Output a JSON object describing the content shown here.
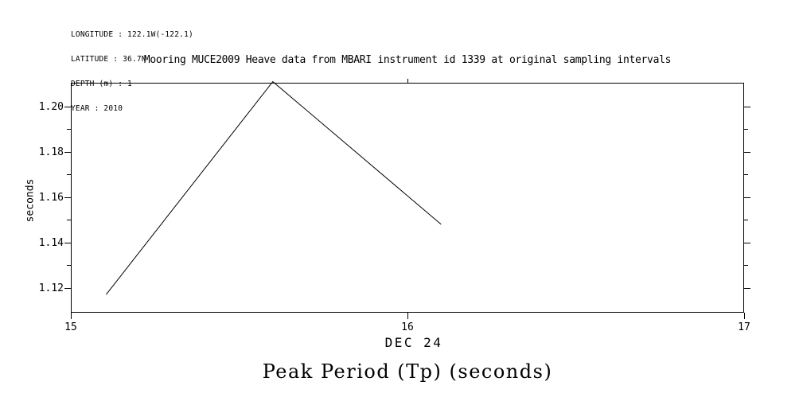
{
  "page": {
    "background": "#ffffff",
    "foreground": "#000000"
  },
  "header_info": {
    "lines": [
      "LONGITUDE : 122.1W(-122.1)",
      "LATITUDE : 36.7N",
      "DEPTH (m) : 1",
      "YEAR : 2010"
    ]
  },
  "chart_data": {
    "type": "line",
    "title": "Mooring MUCE2009 Heave data from MBARI instrument id 1339 at original sampling intervals",
    "ylabel": "seconds",
    "x_date_label": "DEC 24",
    "footer_title": "Peak Period (Tp) (seconds)",
    "series": [
      {
        "name": "peak-period-tp",
        "x": [
          15.105,
          15.6,
          16.1
        ],
        "y": [
          1.117,
          1.211,
          1.148
        ],
        "color": "#000000"
      }
    ],
    "xlim": [
      15,
      17
    ],
    "ylim": [
      1.109,
      1.2105
    ],
    "x_major_ticks": [
      15,
      16,
      17
    ],
    "x_major_tick_labels": [
      "15",
      "16",
      "17"
    ],
    "x_top_ticks": [
      16
    ],
    "y_major_ticks": [
      1.12,
      1.14,
      1.16,
      1.18,
      1.2
    ],
    "y_major_tick_labels": [
      "1.12",
      "1.14",
      "1.16",
      "1.18",
      "1.20"
    ],
    "y_minor_ticks": [
      1.13,
      1.15,
      1.17,
      1.19
    ],
    "grid": false,
    "legend": null,
    "frame": true
  }
}
